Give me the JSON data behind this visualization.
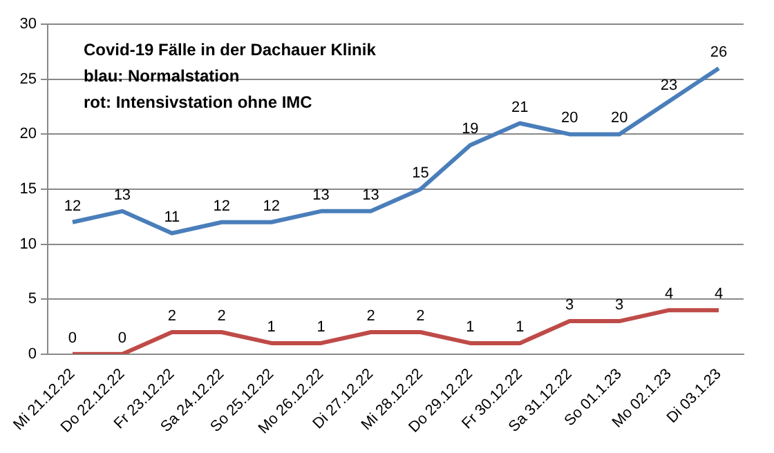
{
  "chart_data": {
    "type": "line",
    "title": "Covid-19 Fälle in der Dachauer Klinik",
    "annotations": [
      "blau: Normalstation",
      "rot: Intensivstation ohne IMC"
    ],
    "categories": [
      "Mi 21.12.22",
      "Do 22.12.22",
      "Fr 23.12.22",
      "Sa 24.12.22",
      "So 25.12.22",
      "Mo 26.12.22",
      "Di 27.12.22",
      "Mi 28.12.22",
      "Do 29.12.22",
      "Fr 30.12.22",
      "Sa 31.12.22",
      "So 01.1.23",
      "Mo 02.1.23",
      "Di 03.1.23"
    ],
    "series": [
      {
        "color": "#4a7ebb",
        "values": [
          12,
          13,
          11,
          12,
          12,
          13,
          13,
          15,
          19,
          21,
          20,
          20,
          23,
          26
        ]
      },
      {
        "color": "#be4b48",
        "values": [
          0,
          0,
          2,
          2,
          1,
          1,
          2,
          2,
          1,
          1,
          3,
          3,
          4,
          4
        ]
      }
    ],
    "ylim": [
      0,
      30
    ],
    "yticks": [
      0,
      5,
      10,
      15,
      20,
      25,
      30
    ],
    "grid": "y",
    "legend": false,
    "marker": "none",
    "line_style": "solid",
    "data_labels": true
  }
}
